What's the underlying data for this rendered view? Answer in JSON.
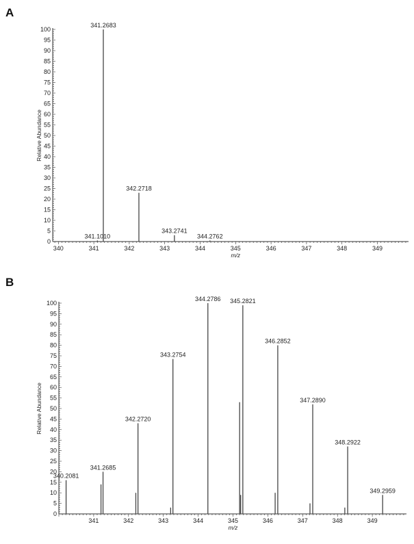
{
  "chart_data": [
    {
      "type": "bar",
      "panel": "A",
      "xlabel": "m/z",
      "ylabel": "Relative Abundance",
      "xlim": [
        339.85,
        349.85
      ],
      "ylim": [
        0,
        100
      ],
      "xticks": [
        340,
        341,
        342,
        343,
        344,
        345,
        346,
        347,
        348,
        349
      ],
      "yticks": [
        0,
        5,
        10,
        15,
        20,
        25,
        30,
        35,
        40,
        45,
        50,
        55,
        60,
        65,
        70,
        75,
        80,
        85,
        90,
        95,
        100
      ],
      "peaks": [
        {
          "mz": 341.101,
          "abundance": 0.5,
          "label": "341.1010"
        },
        {
          "mz": 341.2683,
          "abundance": 100,
          "label": "341.2683"
        },
        {
          "mz": 342.2718,
          "abundance": 23,
          "label": "342.2718"
        },
        {
          "mz": 343.2741,
          "abundance": 3,
          "label": "343.2741"
        },
        {
          "mz": 344.2762,
          "abundance": 0.5,
          "label": "344.2762"
        }
      ]
    },
    {
      "type": "bar",
      "panel": "B",
      "xlabel": "m/z",
      "ylabel": "Relative Abundance",
      "xlim": [
        340.0,
        349.95
      ],
      "ylim": [
        0,
        100
      ],
      "xticks": [
        341,
        342,
        343,
        344,
        345,
        346,
        347,
        348,
        349
      ],
      "yticks": [
        0,
        5,
        10,
        15,
        20,
        25,
        30,
        35,
        40,
        45,
        50,
        55,
        60,
        65,
        70,
        75,
        80,
        85,
        90,
        95,
        100
      ],
      "peaks": [
        {
          "mz": 340.2081,
          "abundance": 16,
          "label": "340.2081"
        },
        {
          "mz": 341.21,
          "abundance": 14
        },
        {
          "mz": 341.2685,
          "abundance": 20,
          "label": "341.2685"
        },
        {
          "mz": 342.21,
          "abundance": 10
        },
        {
          "mz": 342.272,
          "abundance": 43,
          "label": "342.2720"
        },
        {
          "mz": 343.21,
          "abundance": 3
        },
        {
          "mz": 343.2754,
          "abundance": 73.5,
          "label": "343.2754"
        },
        {
          "mz": 344.2786,
          "abundance": 100,
          "label": "344.2786"
        },
        {
          "mz": 345.19,
          "abundance": 53
        },
        {
          "mz": 345.22,
          "abundance": 9
        },
        {
          "mz": 345.2821,
          "abundance": 99,
          "label": "345.2821"
        },
        {
          "mz": 346.21,
          "abundance": 10
        },
        {
          "mz": 346.2852,
          "abundance": 80,
          "label": "346.2852"
        },
        {
          "mz": 347.21,
          "abundance": 5
        },
        {
          "mz": 347.289,
          "abundance": 52,
          "label": "347.2890"
        },
        {
          "mz": 348.21,
          "abundance": 3
        },
        {
          "mz": 348.2922,
          "abundance": 32,
          "label": "348.2922"
        },
        {
          "mz": 349.2959,
          "abundance": 9,
          "label": "349.2959"
        }
      ]
    }
  ],
  "colors": {
    "peak": "#444444",
    "axis": "#333333"
  }
}
